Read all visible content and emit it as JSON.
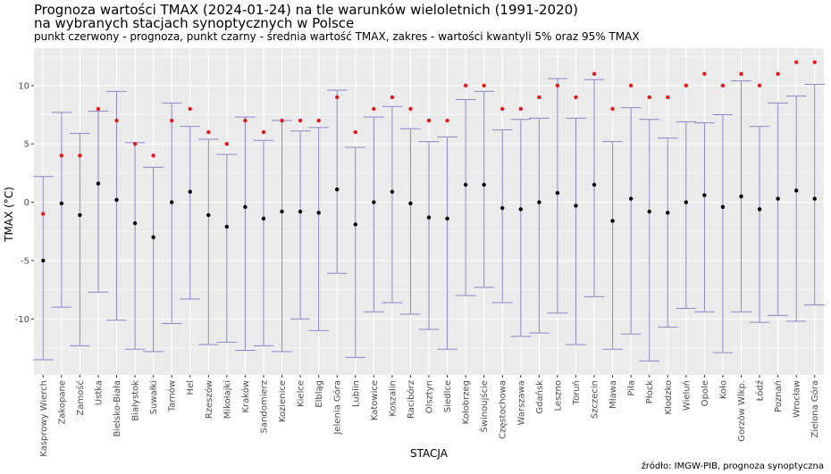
{
  "chart_data": {
    "type": "scatter",
    "title": "Prognoza wartości TMAX (2024-01-24) na tle warunków wieloletnich (1991-2020)",
    "title_line2": "na wybranych stacjach synoptycznych w Polsce",
    "subtitle": "punkt czerwony - prognoza, punkt czarny - średnia wartość TMAX, zakres - wartości kwantyli 5% oraz 95% TMAX",
    "xlabel": "STACJA",
    "ylabel": "TMAX (°C)",
    "source": "źródło: IMGW-PIB, prognoza synoptyczna",
    "ylim": [
      -14.8,
      13.2
    ],
    "yticks": [
      -10,
      -5,
      0,
      5,
      10
    ],
    "grid": true,
    "colors": {
      "forecast": "#e41a1c",
      "mean": "#000000",
      "range": "#8b87c9",
      "panel": "#ebebeb",
      "grid": "#ffffff"
    },
    "categories": [
      "Kasprowy Wierch",
      "Zakopane",
      "Zamość",
      "Ustka",
      "Bielsko-Biała",
      "Białystok",
      "Suwałki",
      "Tarnów",
      "Hel",
      "Rzeszów",
      "Mikołajki",
      "Kraków",
      "Sandomierz",
      "Kozienice",
      "Kielce",
      "Elbląg",
      "Jelenia Góra",
      "Lublin",
      "Katowice",
      "Koszalin",
      "Racibórz",
      "Olsztyn",
      "Siedlce",
      "Kołobrzeg",
      "Świnoujście",
      "Częstochowa",
      "Warszawa",
      "Gdańsk",
      "Leszno",
      "Toruń",
      "Szczecin",
      "Mława",
      "Piła",
      "Płock",
      "Kłodzko",
      "Wieluń",
      "Opole",
      "Koło",
      "Gorzów Wlkp.",
      "Łódź",
      "Poznań",
      "Wrocław",
      "Zielona Góra"
    ],
    "series": [
      {
        "name": "prognoza",
        "values": [
          -1,
          4,
          4,
          8,
          7,
          5,
          4,
          7,
          8,
          6,
          5,
          7,
          6,
          7,
          7,
          7,
          9,
          6,
          8,
          9,
          8,
          7,
          7,
          10,
          10,
          8,
          8,
          9,
          10,
          9,
          11,
          8,
          10,
          9,
          9,
          10,
          11,
          10,
          11,
          10,
          11,
          12,
          12
        ]
      },
      {
        "name": "średnia",
        "values": [
          -5,
          -0.1,
          -1.1,
          1.6,
          0.2,
          -1.8,
          -3,
          0,
          0.9,
          -1.1,
          -2.1,
          -0.4,
          -1.4,
          -0.8,
          -0.8,
          -0.9,
          1.1,
          -1.9,
          0,
          0.9,
          -0.1,
          -1.3,
          -1.4,
          1.5,
          1.5,
          -0.5,
          -0.6,
          0,
          0.8,
          -0.3,
          1.5,
          -1.6,
          0.3,
          -0.8,
          -0.9,
          0,
          0.6,
          -0.4,
          0.5,
          -0.6,
          0.3,
          1,
          0.3
        ]
      },
      {
        "name": "q05",
        "values": [
          -13.5,
          -9,
          -12.3,
          -7.7,
          -10.1,
          -12.6,
          -12.8,
          -10.4,
          -8.3,
          -12.2,
          -12,
          -12.7,
          -12.3,
          -12.8,
          -10,
          -11,
          -6.1,
          -13.3,
          -9.4,
          -8.6,
          -9.6,
          -10.9,
          -12.6,
          -8,
          -7.3,
          -8.6,
          -11.5,
          -11.2,
          -9.5,
          -12.2,
          -8.1,
          -12.6,
          -11.3,
          -13.6,
          -10.7,
          -9.1,
          -9.4,
          -12.9,
          -9.4,
          -10.3,
          -9.7,
          -10.2,
          -8.8
        ]
      },
      {
        "name": "q95",
        "values": [
          2.2,
          7.7,
          5.9,
          7.8,
          9.5,
          5.1,
          3,
          8.5,
          6.5,
          5.4,
          4.1,
          7.3,
          5.3,
          7,
          6.1,
          6.4,
          9.6,
          4.7,
          7.3,
          8.2,
          6.3,
          5.2,
          5.6,
          8.8,
          9.5,
          6.2,
          7.1,
          7.2,
          10.6,
          7.2,
          10.5,
          5.2,
          8.1,
          7.1,
          5.5,
          6.9,
          6.8,
          7.5,
          10.4,
          6.5,
          8.5,
          9.1,
          10.1
        ]
      }
    ]
  }
}
